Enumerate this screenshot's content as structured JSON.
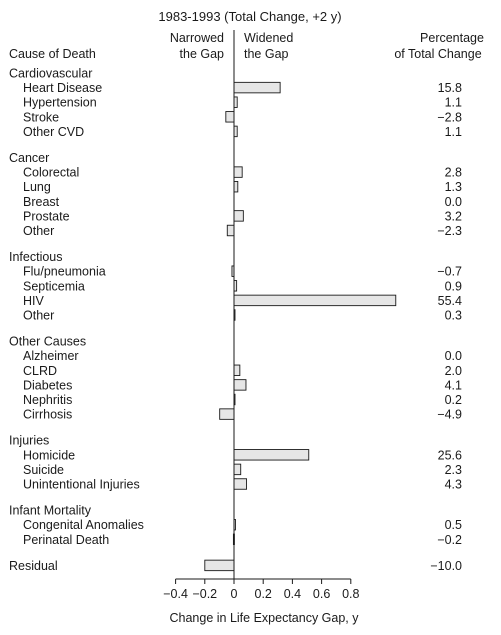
{
  "header": {
    "title": "1983-1993 (Total Change, +2 y)",
    "cause_column_label": "Cause of Death",
    "narrowed_line1": "Narrowed",
    "narrowed_line2": "the Gap",
    "widened_line1": "Widened",
    "widened_line2": "the Gap",
    "percent_line1": "Percentage",
    "percent_line2": "of Total Change"
  },
  "chart_data": {
    "type": "bar",
    "orientation": "horizontal",
    "xlabel": "Change in Life Expectancy Gap, y",
    "xlim": [
      -0.4,
      0.8
    ],
    "xticks": [
      "−0.4",
      "−0.2",
      "0",
      "0.2",
      "0.4",
      "0.6",
      "0.8"
    ],
    "grid": false,
    "groups": [
      {
        "name": "Cardiovascular",
        "items": [
          {
            "label": "Heart Disease",
            "value": 0.316,
            "percent": "15.8"
          },
          {
            "label": "Hypertension",
            "value": 0.022,
            "percent": "1.1"
          },
          {
            "label": "Stroke",
            "value": -0.056,
            "percent": "−2.8"
          },
          {
            "label": "Other CVD",
            "value": 0.022,
            "percent": "1.1"
          }
        ]
      },
      {
        "name": "Cancer",
        "items": [
          {
            "label": "Colorectal",
            "value": 0.056,
            "percent": "2.8"
          },
          {
            "label": "Lung",
            "value": 0.026,
            "percent": "1.3"
          },
          {
            "label": "Breast",
            "value": 0.0,
            "percent": "0.0"
          },
          {
            "label": "Prostate",
            "value": 0.064,
            "percent": "3.2"
          },
          {
            "label": "Other",
            "value": -0.046,
            "percent": "−2.3"
          }
        ]
      },
      {
        "name": "Infectious",
        "items": [
          {
            "label": "Flu/pneumonia",
            "value": -0.014,
            "percent": "−0.7"
          },
          {
            "label": "Septicemia",
            "value": 0.018,
            "percent": "0.9"
          },
          {
            "label": "HIV",
            "value": 1.108,
            "percent": "55.4"
          },
          {
            "label": "Other",
            "value": 0.006,
            "percent": "0.3"
          }
        ]
      },
      {
        "name": "Other Causes",
        "items": [
          {
            "label": "Alzheimer",
            "value": 0.0,
            "percent": "0.0"
          },
          {
            "label": "CLRD",
            "value": 0.04,
            "percent": "2.0"
          },
          {
            "label": "Diabetes",
            "value": 0.082,
            "percent": "4.1"
          },
          {
            "label": "Nephritis",
            "value": 0.004,
            "percent": "0.2"
          },
          {
            "label": "Cirrhosis",
            "value": -0.098,
            "percent": "−4.9"
          }
        ]
      },
      {
        "name": "Injuries",
        "items": [
          {
            "label": "Homicide",
            "value": 0.512,
            "percent": "25.6"
          },
          {
            "label": "Suicide",
            "value": 0.046,
            "percent": "2.3"
          },
          {
            "label": "Unintentional Injuries",
            "value": 0.086,
            "percent": "4.3"
          }
        ]
      },
      {
        "name": "Infant Mortality",
        "items": [
          {
            "label": "Congenital Anomalies",
            "value": 0.01,
            "percent": "0.5"
          },
          {
            "label": "Perinatal Death",
            "value": -0.004,
            "percent": "−0.2"
          }
        ]
      },
      {
        "name": "",
        "items": [
          {
            "label": "Residual",
            "value": -0.2,
            "percent": "−10.0"
          }
        ]
      }
    ]
  }
}
